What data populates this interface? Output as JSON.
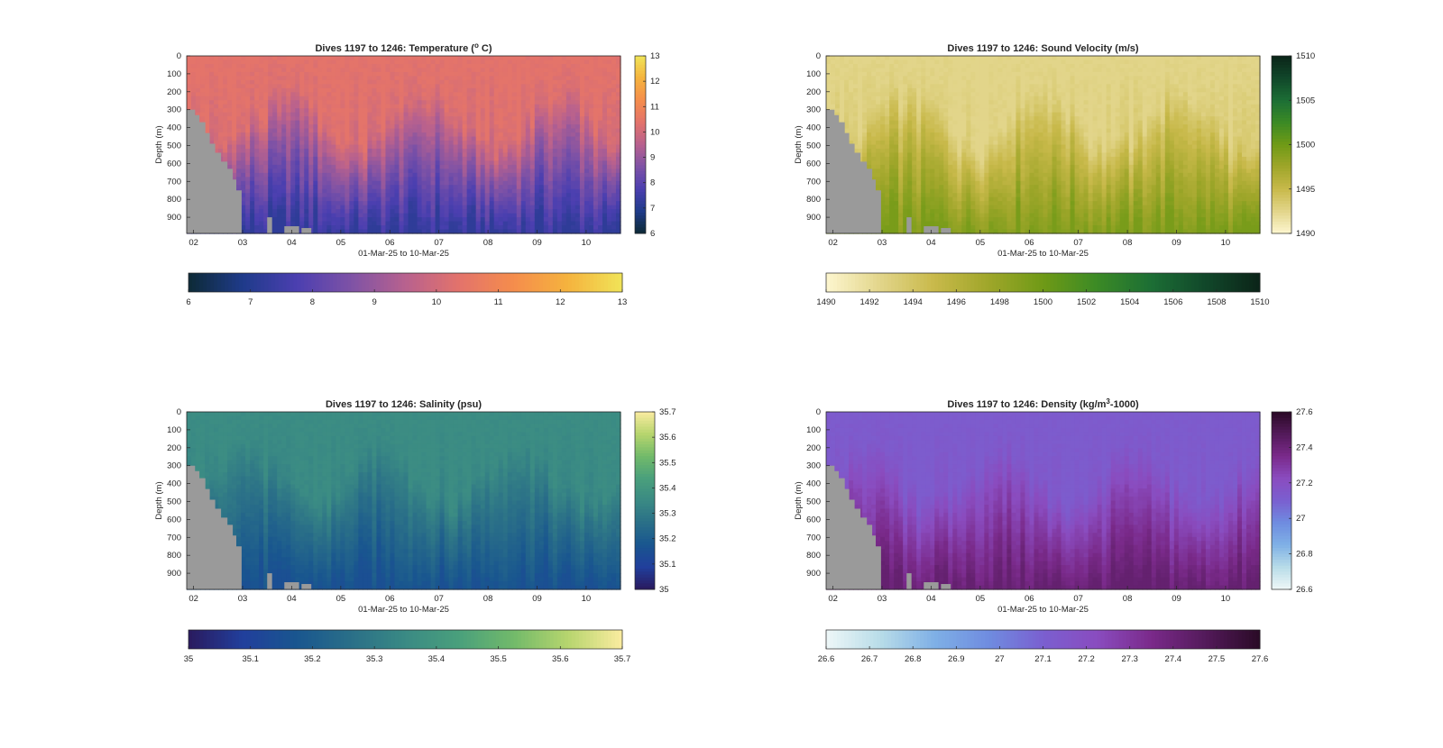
{
  "colors": {
    "bathymetry": "#9a9a9a",
    "axis": "#262626",
    "temperature": [
      "#0d2a36",
      "#1f3b8a",
      "#4b3fb0",
      "#7e52a6",
      "#b8618e",
      "#e3736b",
      "#f58d4c",
      "#f5b33e",
      "#f0e458"
    ],
    "sound_velocity": [
      "#fdf6cf",
      "#e2d58a",
      "#c8b94a",
      "#9fa62a",
      "#6f9a16",
      "#3b8a25",
      "#1c6e35",
      "#11472a",
      "#0b2418"
    ],
    "salinity": [
      "#2a1a5e",
      "#213f9c",
      "#19568f",
      "#2a6f88",
      "#3a8a84",
      "#4aa07c",
      "#72ba6a",
      "#b7d56e",
      "#fbeca0"
    ],
    "density": [
      "#eef7f7",
      "#b8dce8",
      "#7fb0e6",
      "#6f8ce0",
      "#7a5fd0",
      "#8a4cbf",
      "#7a2a8a",
      "#531a5a",
      "#2a0a26"
    ]
  },
  "chart_data": [
    {
      "type": "heatmap",
      "title": "Dives 1197 to 1246: Temperature (",
      "title_sup": "o",
      "title_end": " C)",
      "xlabel": "01-Mar-25 to 10-Mar-25",
      "ylabel": "Depth (m)",
      "x_ticks": [
        "02",
        "03",
        "04",
        "05",
        "06",
        "07",
        "08",
        "09",
        "10"
      ],
      "y_ticks": [
        "0",
        "100",
        "200",
        "300",
        "400",
        "500",
        "600",
        "700",
        "800",
        "900"
      ],
      "x_range": [
        1.86,
        10.7
      ],
      "y_range": [
        0,
        990
      ],
      "colorbar": {
        "ticks": [
          "13",
          "12",
          "11",
          "10",
          "9",
          "8",
          "7",
          "6"
        ],
        "range": [
          6,
          13
        ]
      },
      "horizontal_colorbar": {
        "ticks": [
          "6",
          "7",
          "8",
          "9",
          "10",
          "11",
          "12",
          "13"
        ],
        "range": [
          6,
          13
        ]
      },
      "surface_value": 10.4,
      "deep_value": 7.2,
      "colormap": "temperature"
    },
    {
      "type": "heatmap",
      "title": "Dives 1197 to 1246: Sound Velocity (m/s)",
      "xlabel": "01-Mar-25 to 10-Mar-25",
      "ylabel": "Depth (m)",
      "x_ticks": [
        "02",
        "03",
        "04",
        "05",
        "06",
        "07",
        "08",
        "09",
        "10"
      ],
      "y_ticks": [
        "0",
        "100",
        "200",
        "300",
        "400",
        "500",
        "600",
        "700",
        "800",
        "900"
      ],
      "x_range": [
        1.86,
        10.7
      ],
      "y_range": [
        0,
        990
      ],
      "colorbar": {
        "ticks": [
          "1510",
          "1505",
          "1500",
          "1495",
          "1490"
        ],
        "range": [
          1490,
          1510
        ]
      },
      "horizontal_colorbar": {
        "ticks": [
          "1490",
          "1492",
          "1494",
          "1496",
          "1498",
          "1500",
          "1502",
          "1504",
          "1506",
          "1508",
          "1510"
        ],
        "range": [
          1490,
          1510
        ]
      },
      "surface_value": 1492.5,
      "deep_value": 1499.5,
      "colormap": "sound_velocity"
    },
    {
      "type": "heatmap",
      "title": "Dives 1197 to 1246: Salinity (psu)",
      "xlabel": "01-Mar-25 to 10-Mar-25",
      "ylabel": "Depth (m)",
      "x_ticks": [
        "02",
        "03",
        "04",
        "05",
        "06",
        "07",
        "08",
        "09",
        "10"
      ],
      "y_ticks": [
        "0",
        "100",
        "200",
        "300",
        "400",
        "500",
        "600",
        "700",
        "800",
        "900"
      ],
      "x_range": [
        1.86,
        10.7
      ],
      "y_range": [
        0,
        990
      ],
      "colorbar": {
        "ticks": [
          "35.7",
          "35.6",
          "35.5",
          "35.4",
          "35.3",
          "35.2",
          "35.1",
          "35"
        ],
        "range": [
          35,
          35.7
        ]
      },
      "horizontal_colorbar": {
        "ticks": [
          "35",
          "35.1",
          "35.2",
          "35.3",
          "35.4",
          "35.5",
          "35.6",
          "35.7"
        ],
        "range": [
          35,
          35.7
        ]
      },
      "surface_value": 35.36,
      "deep_value": 35.15,
      "colormap": "salinity"
    },
    {
      "type": "heatmap",
      "title": "Dives 1197 to 1246: Density (kg/m",
      "title_sup": "3",
      "title_end": "-1000)",
      "xlabel": "01-Mar-25 to 10-Mar-25",
      "ylabel": "Depth (m)",
      "x_ticks": [
        "02",
        "03",
        "04",
        "05",
        "06",
        "07",
        "08",
        "09",
        "10"
      ],
      "y_ticks": [
        "0",
        "100",
        "200",
        "300",
        "400",
        "500",
        "600",
        "700",
        "800",
        "900"
      ],
      "x_range": [
        1.86,
        10.7
      ],
      "y_range": [
        0,
        990
      ],
      "colorbar": {
        "ticks": [
          "27.6",
          "27.4",
          "27.2",
          "27",
          "26.8",
          "26.6"
        ],
        "range": [
          26.6,
          27.6
        ]
      },
      "horizontal_colorbar": {
        "ticks": [
          "26.6",
          "26.7",
          "26.8",
          "26.9",
          "27",
          "27.1",
          "27.2",
          "27.3",
          "27.4",
          "27.5",
          "27.6"
        ],
        "range": [
          26.6,
          27.6
        ]
      },
      "surface_value": 27.12,
      "deep_value": 27.42,
      "colormap": "density"
    }
  ]
}
